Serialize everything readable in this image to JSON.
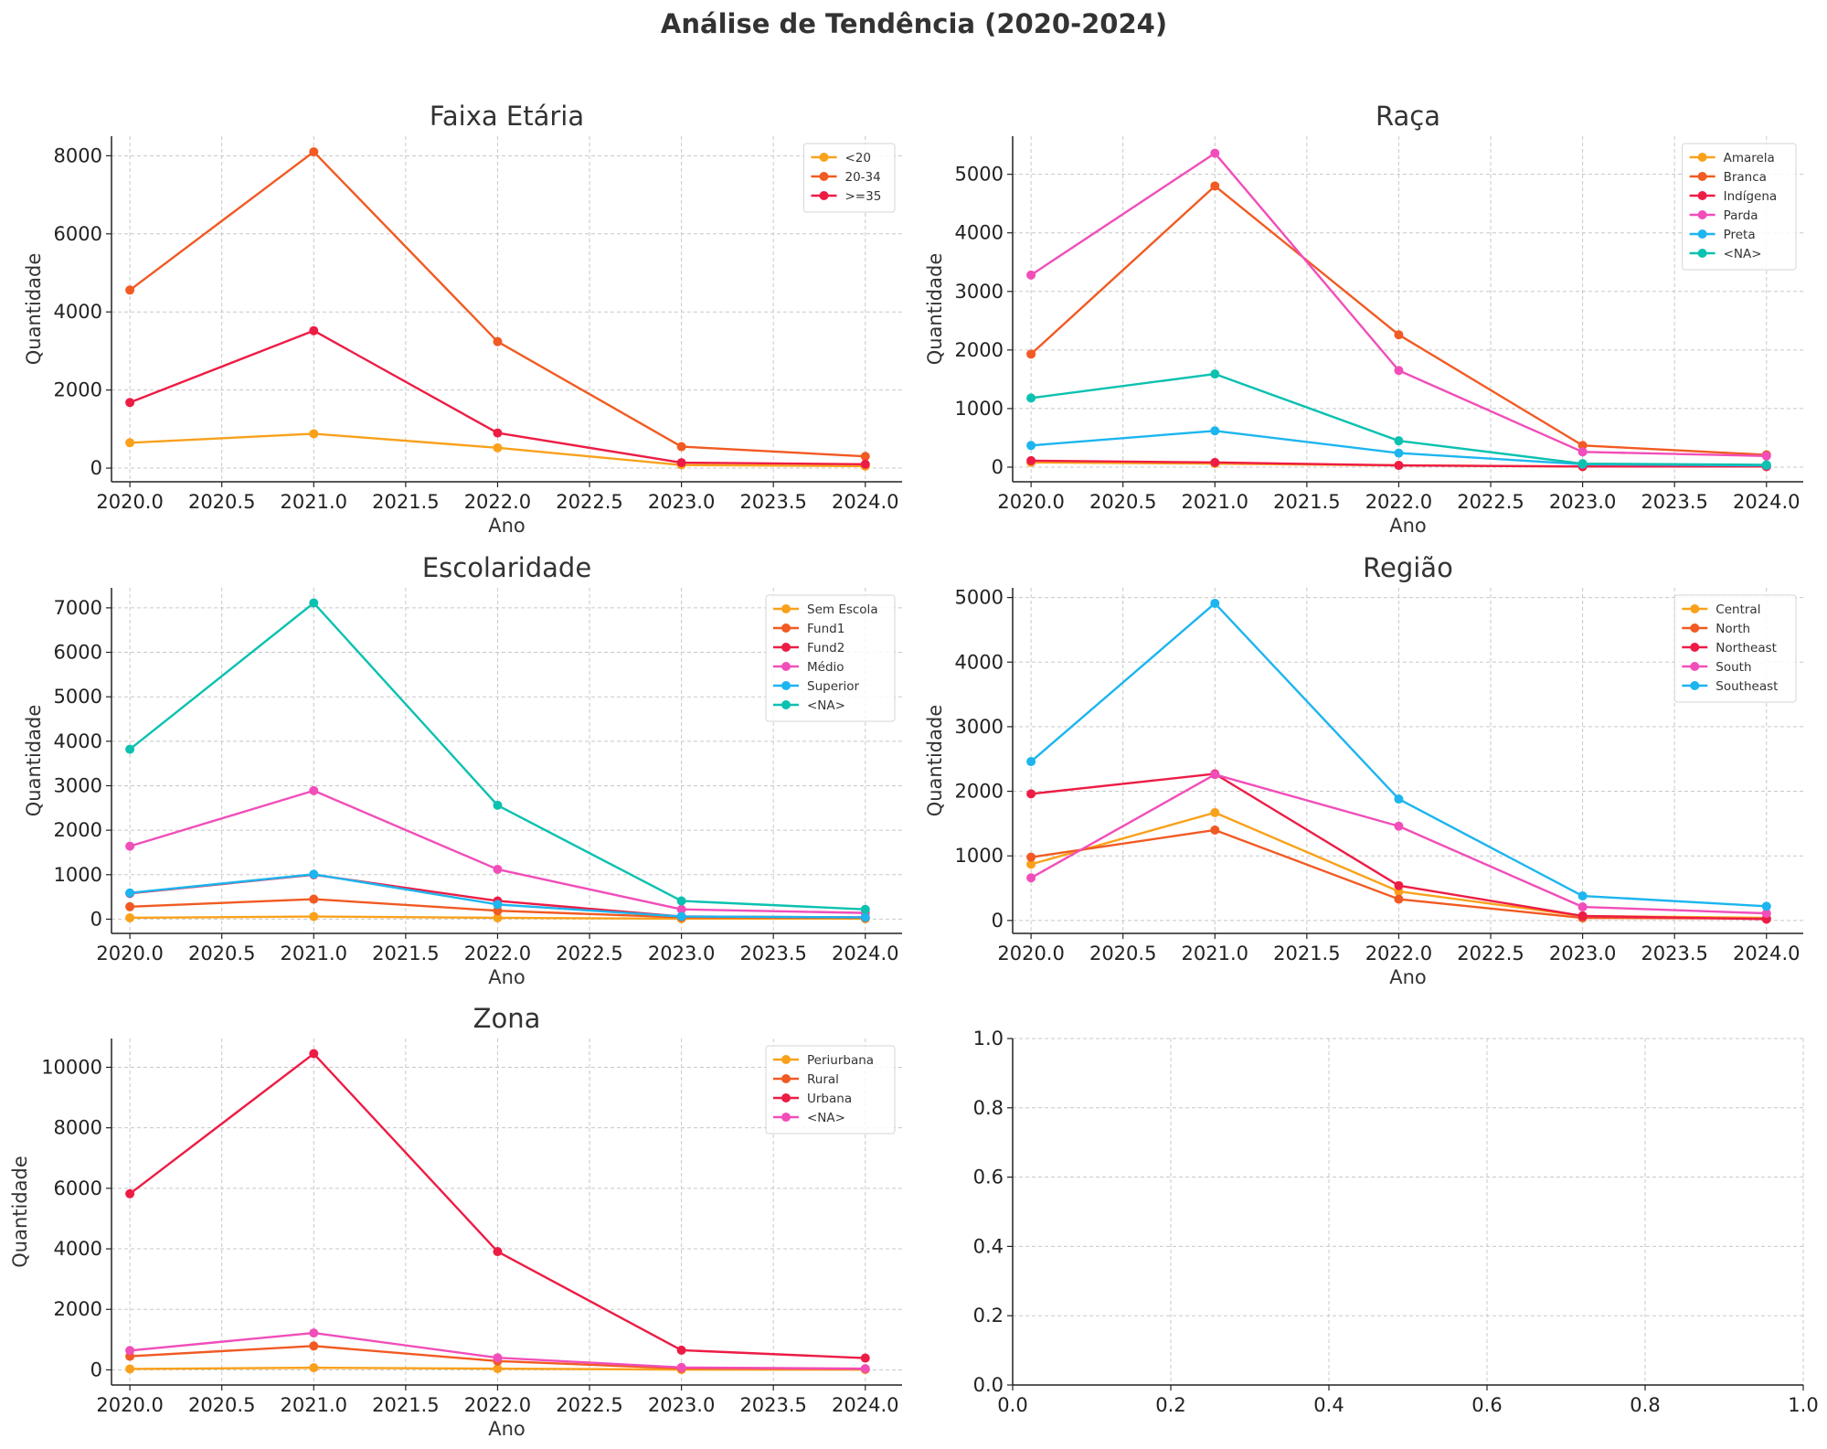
{
  "figure": {
    "title": "Análise de Tendência (2020-2024)"
  },
  "chart_data": [
    {
      "type": "line",
      "title": "Faixa Etária",
      "xlabel": "Ano",
      "ylabel": "Quantidade",
      "x": [
        2020,
        2021,
        2022,
        2023,
        2024
      ],
      "xlim": [
        2019.9,
        2024.2
      ],
      "ylim": [
        -350,
        8500
      ],
      "xticks": [
        2020.0,
        2020.5,
        2021.0,
        2021.5,
        2022.0,
        2022.5,
        2023.0,
        2023.5,
        2024.0
      ],
      "xtick_labels": [
        "2020.0",
        "2020.5",
        "2021.0",
        "2021.5",
        "2022.0",
        "2022.5",
        "2023.0",
        "2023.5",
        "2024.0"
      ],
      "yticks": [
        0,
        2000,
        4000,
        6000,
        8000
      ],
      "ytick_labels": [
        "0",
        "2000",
        "4000",
        "6000",
        "8000"
      ],
      "grid": true,
      "legend_position": "top-right",
      "series": [
        {
          "name": "<20",
          "color": "#f9a11b",
          "values": [
            650,
            880,
            520,
            80,
            50
          ]
        },
        {
          "name": "20-34",
          "color": "#f15a22",
          "values": [
            4560,
            8100,
            3240,
            550,
            300
          ]
        },
        {
          "name": ">=35",
          "color": "#ed1c45",
          "values": [
            1680,
            3520,
            900,
            140,
            100
          ]
        }
      ]
    },
    {
      "type": "line",
      "title": "Raça",
      "xlabel": "Ano",
      "ylabel": "Quantidade",
      "x": [
        2020,
        2021,
        2022,
        2023,
        2024
      ],
      "xlim": [
        2019.9,
        2024.2
      ],
      "ylim": [
        -250,
        5650
      ],
      "xticks": [
        2020.0,
        2020.5,
        2021.0,
        2021.5,
        2022.0,
        2022.5,
        2023.0,
        2023.5,
        2024.0
      ],
      "xtick_labels": [
        "2020.0",
        "2020.5",
        "2021.0",
        "2021.5",
        "2022.0",
        "2022.5",
        "2023.0",
        "2023.5",
        "2024.0"
      ],
      "yticks": [
        0,
        1000,
        2000,
        3000,
        4000,
        5000
      ],
      "ytick_labels": [
        "0",
        "1000",
        "2000",
        "3000",
        "4000",
        "5000"
      ],
      "grid": true,
      "legend_position": "top-right",
      "series": [
        {
          "name": "Amarela",
          "color": "#f9a11b",
          "values": [
            80,
            60,
            30,
            10,
            10
          ]
        },
        {
          "name": "Branca",
          "color": "#f15a22",
          "values": [
            1930,
            4800,
            2260,
            370,
            210
          ]
        },
        {
          "name": "Indígena",
          "color": "#ed1c45",
          "values": [
            110,
            80,
            30,
            10,
            10
          ]
        },
        {
          "name": "Parda",
          "color": "#f14eb9",
          "values": [
            3280,
            5360,
            1650,
            260,
            190
          ]
        },
        {
          "name": "Preta",
          "color": "#1cb5ef",
          "values": [
            370,
            620,
            240,
            50,
            30
          ]
        },
        {
          "name": "<NA>",
          "color": "#0bc1b0",
          "values": [
            1180,
            1590,
            450,
            60,
            40
          ]
        }
      ]
    },
    {
      "type": "line",
      "title": "Escolaridade",
      "xlabel": "Ano",
      "ylabel": "Quantidade",
      "x": [
        2020,
        2021,
        2022,
        2023,
        2024
      ],
      "xlim": [
        2019.9,
        2024.2
      ],
      "ylim": [
        -320,
        7450
      ],
      "xticks": [
        2020.0,
        2020.5,
        2021.0,
        2021.5,
        2022.0,
        2022.5,
        2023.0,
        2023.5,
        2024.0
      ],
      "xtick_labels": [
        "2020.0",
        "2020.5",
        "2021.0",
        "2021.5",
        "2022.0",
        "2022.5",
        "2023.0",
        "2023.5",
        "2024.0"
      ],
      "yticks": [
        0,
        1000,
        2000,
        3000,
        4000,
        5000,
        6000,
        7000
      ],
      "ytick_labels": [
        "0",
        "1000",
        "2000",
        "3000",
        "4000",
        "5000",
        "6000",
        "7000"
      ],
      "grid": true,
      "legend_position": "top-right",
      "series": [
        {
          "name": "Sem Escola",
          "color": "#f9a11b",
          "values": [
            30,
            60,
            30,
            10,
            10
          ]
        },
        {
          "name": "Fund1",
          "color": "#f15a22",
          "values": [
            280,
            450,
            190,
            40,
            30
          ]
        },
        {
          "name": "Fund2",
          "color": "#ed1c45",
          "values": [
            580,
            1000,
            410,
            60,
            40
          ]
        },
        {
          "name": "Médio",
          "color": "#f14eb9",
          "values": [
            1640,
            2890,
            1120,
            220,
            140
          ]
        },
        {
          "name": "Superior",
          "color": "#1cb5ef",
          "values": [
            590,
            1010,
            330,
            60,
            40
          ]
        },
        {
          "name": "<NA>",
          "color": "#0bc1b0",
          "values": [
            3820,
            7110,
            2560,
            410,
            220
          ]
        }
      ]
    },
    {
      "type": "line",
      "title": "Região",
      "xlabel": "Ano",
      "ylabel": "Quantidade",
      "x": [
        2020,
        2021,
        2022,
        2023,
        2024
      ],
      "xlim": [
        2019.9,
        2024.2
      ],
      "ylim": [
        -200,
        5150
      ],
      "xticks": [
        2020.0,
        2020.5,
        2021.0,
        2021.5,
        2022.0,
        2022.5,
        2023.0,
        2023.5,
        2024.0
      ],
      "xtick_labels": [
        "2020.0",
        "2020.5",
        "2021.0",
        "2021.5",
        "2022.0",
        "2022.5",
        "2023.0",
        "2023.5",
        "2024.0"
      ],
      "yticks": [
        0,
        1000,
        2000,
        3000,
        4000,
        5000
      ],
      "ytick_labels": [
        "0",
        "1000",
        "2000",
        "3000",
        "4000",
        "5000"
      ],
      "grid": true,
      "legend_position": "top-right",
      "series": [
        {
          "name": "Central",
          "color": "#f9a11b",
          "values": [
            870,
            1670,
            450,
            70,
            40
          ]
        },
        {
          "name": "North",
          "color": "#f15a22",
          "values": [
            980,
            1400,
            330,
            40,
            30
          ]
        },
        {
          "name": "Northeast",
          "color": "#ed1c45",
          "values": [
            1960,
            2270,
            540,
            70,
            20
          ]
        },
        {
          "name": "South",
          "color": "#f14eb9",
          "values": [
            660,
            2260,
            1460,
            210,
            110
          ]
        },
        {
          "name": "Southeast",
          "color": "#1cb5ef",
          "values": [
            2460,
            4910,
            1880,
            380,
            220
          ]
        }
      ]
    },
    {
      "type": "line",
      "title": "Zona",
      "xlabel": "Ano",
      "ylabel": "Quantidade",
      "x": [
        2020,
        2021,
        2022,
        2023,
        2024
      ],
      "xlim": [
        2019.9,
        2024.2
      ],
      "ylim": [
        -500,
        10950
      ],
      "xticks": [
        2020.0,
        2020.5,
        2021.0,
        2021.5,
        2022.0,
        2022.5,
        2023.0,
        2023.5,
        2024.0
      ],
      "xtick_labels": [
        "2020.0",
        "2020.5",
        "2021.0",
        "2021.5",
        "2022.0",
        "2022.5",
        "2023.0",
        "2023.5",
        "2024.0"
      ],
      "yticks": [
        0,
        2000,
        4000,
        6000,
        8000,
        10000
      ],
      "ytick_labels": [
        "0",
        "2000",
        "4000",
        "6000",
        "8000",
        "10000"
      ],
      "grid": true,
      "legend_position": "top-right",
      "series": [
        {
          "name": "Periurbana",
          "color": "#f9a11b",
          "values": [
            30,
            70,
            40,
            10,
            10
          ]
        },
        {
          "name": "Rural",
          "color": "#f15a22",
          "values": [
            450,
            790,
            290,
            50,
            30
          ]
        },
        {
          "name": "Urbana",
          "color": "#ed1c45",
          "values": [
            5820,
            10450,
            3910,
            650,
            390
          ]
        },
        {
          "name": "<NA>",
          "color": "#f14eb9",
          "values": [
            640,
            1220,
            400,
            80,
            40
          ]
        }
      ]
    },
    {
      "type": "line",
      "title": "",
      "xlabel": "",
      "ylabel": "",
      "xlim": [
        0,
        1
      ],
      "ylim": [
        0,
        1
      ],
      "xticks": [
        0.0,
        0.2,
        0.4,
        0.6,
        0.8,
        1.0
      ],
      "xtick_labels": [
        "0.0",
        "0.2",
        "0.4",
        "0.6",
        "0.8",
        "1.0"
      ],
      "yticks": [
        0.0,
        0.2,
        0.4,
        0.6,
        0.8,
        1.0
      ],
      "ytick_labels": [
        "0.0",
        "0.2",
        "0.4",
        "0.6",
        "0.8",
        "1.0"
      ],
      "grid": true,
      "series": []
    }
  ]
}
